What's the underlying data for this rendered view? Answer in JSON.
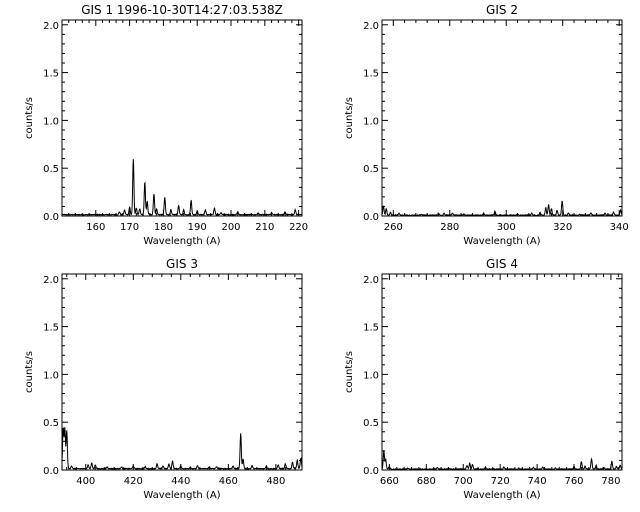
{
  "chart_data": [
    {
      "type": "line",
      "title": "GIS 1 1996-10-30T14:27:03.538Z",
      "xlabel": "Wavelength (A)",
      "ylabel": "counts/s",
      "xlim": [
        150,
        221
      ],
      "ylim": [
        0,
        2.05
      ],
      "x_ticks": [
        160,
        170,
        180,
        190,
        200,
        210,
        220
      ],
      "x_tick_labels": [
        "160",
        "170",
        "180",
        "190",
        "200",
        "210",
        "220"
      ],
      "y_ticks": [
        0,
        0.5,
        1.0,
        1.5,
        2.0
      ],
      "y_tick_labels": [
        "0.0",
        "0.5",
        "1.0",
        "1.5",
        "2.0"
      ],
      "baseline": 0.01,
      "series": [
        {
          "peaks": [
            [
              167.0,
              0.03
            ],
            [
              168.5,
              0.05
            ],
            [
              170.0,
              0.08
            ],
            [
              171.1,
              0.58
            ],
            [
              172.0,
              0.07
            ],
            [
              173.0,
              0.06
            ],
            [
              174.5,
              0.34
            ],
            [
              175.2,
              0.14
            ],
            [
              177.2,
              0.22
            ],
            [
              178.0,
              0.06
            ],
            [
              180.4,
              0.18
            ],
            [
              182.2,
              0.05
            ],
            [
              184.5,
              0.1
            ],
            [
              186.0,
              0.05
            ],
            [
              188.2,
              0.15
            ],
            [
              190.0,
              0.04
            ],
            [
              192.4,
              0.05
            ],
            [
              195.1,
              0.07
            ],
            [
              197.0,
              0.02
            ],
            [
              202.0,
              0.03
            ],
            [
              208.0,
              0.02
            ],
            [
              212.0,
              0.02
            ],
            [
              216.0,
              0.03
            ],
            [
              219.0,
              0.05
            ]
          ]
        }
      ]
    },
    {
      "type": "line",
      "title": "GIS 2",
      "xlabel": "Wavelength (A)",
      "ylabel": "counts/s",
      "xlim": [
        256,
        341
      ],
      "ylim": [
        0,
        2.05
      ],
      "x_ticks": [
        260,
        280,
        300,
        320,
        340
      ],
      "x_tick_labels": [
        "260",
        "280",
        "300",
        "320",
        "340"
      ],
      "y_ticks": [
        0,
        0.5,
        1.0,
        1.5,
        2.0
      ],
      "y_tick_labels": [
        "0.0",
        "0.5",
        "1.0",
        "1.5",
        "2.0"
      ],
      "baseline": 0.005,
      "series": [
        {
          "peaks": [
            [
              256.5,
              0.1
            ],
            [
              257.5,
              0.07
            ],
            [
              259.0,
              0.03
            ],
            [
              262.0,
              0.02
            ],
            [
              270.0,
              0.01
            ],
            [
              276.0,
              0.02
            ],
            [
              278.0,
              0.02
            ],
            [
              281.0,
              0.02
            ],
            [
              285.0,
              0.01
            ],
            [
              292.0,
              0.02
            ],
            [
              296.0,
              0.04
            ],
            [
              304.0,
              0.01
            ],
            [
              309.0,
              0.02
            ],
            [
              312.0,
              0.03
            ],
            [
              314.0,
              0.08
            ],
            [
              315.0,
              0.11
            ],
            [
              316.0,
              0.07
            ],
            [
              318.0,
              0.05
            ],
            [
              319.8,
              0.15
            ],
            [
              322.0,
              0.02
            ],
            [
              326.0,
              0.01
            ],
            [
              330.0,
              0.02
            ],
            [
              335.0,
              0.02
            ],
            [
              338.0,
              0.03
            ],
            [
              340.5,
              0.05
            ]
          ]
        }
      ]
    },
    {
      "type": "line",
      "title": "GIS 3",
      "xlabel": "Wavelength (A)",
      "ylabel": "counts/s",
      "xlim": [
        390,
        491
      ],
      "ylim": [
        0,
        2.05
      ],
      "x_ticks": [
        400,
        420,
        440,
        460,
        480
      ],
      "x_tick_labels": [
        "400",
        "420",
        "440",
        "460",
        "480"
      ],
      "y_ticks": [
        0,
        0.5,
        1.0,
        1.5,
        2.0
      ],
      "y_tick_labels": [
        "0.0",
        "0.5",
        "1.0",
        "1.5",
        "2.0"
      ],
      "baseline": 0.01,
      "series": [
        {
          "peaks": [
            [
              390.5,
              0.43
            ],
            [
              391.2,
              0.42
            ],
            [
              392.0,
              0.4
            ],
            [
              394.0,
              0.03
            ],
            [
              401.0,
              0.04
            ],
            [
              402.5,
              0.06
            ],
            [
              404.0,
              0.04
            ],
            [
              409.0,
              0.02
            ],
            [
              415.0,
              0.02
            ],
            [
              420.0,
              0.03
            ],
            [
              425.0,
              0.02
            ],
            [
              430.0,
              0.05
            ],
            [
              432.5,
              0.03
            ],
            [
              435.0,
              0.05
            ],
            [
              436.5,
              0.08
            ],
            [
              440.0,
              0.03
            ],
            [
              444.0,
              0.02
            ],
            [
              447.0,
              0.03
            ],
            [
              452.0,
              0.02
            ],
            [
              455.0,
              0.02
            ],
            [
              462.0,
              0.03
            ],
            [
              465.2,
              0.37
            ],
            [
              466.2,
              0.1
            ],
            [
              470.0,
              0.03
            ],
            [
              476.0,
              0.03
            ],
            [
              481.0,
              0.04
            ],
            [
              484.0,
              0.05
            ],
            [
              487.0,
              0.07
            ],
            [
              489.0,
              0.09
            ],
            [
              490.5,
              0.11
            ]
          ]
        }
      ]
    },
    {
      "type": "line",
      "title": "GIS 4",
      "xlabel": "Wavelength (A)",
      "ylabel": "counts/s",
      "xlim": [
        656,
        786
      ],
      "ylim": [
        0,
        2.05
      ],
      "x_ticks": [
        660,
        680,
        700,
        720,
        740,
        760,
        780
      ],
      "x_tick_labels": [
        "660",
        "680",
        "700",
        "720",
        "740",
        "760",
        "780"
      ],
      "y_ticks": [
        0,
        0.5,
        1.0,
        1.5,
        2.0
      ],
      "y_tick_labels": [
        "0.0",
        "0.5",
        "1.0",
        "1.5",
        "2.0"
      ],
      "baseline": 0.005,
      "series": [
        {
          "peaks": [
            [
              657.0,
              0.19
            ],
            [
              658.0,
              0.1
            ],
            [
              660.0,
              0.03
            ],
            [
              670.0,
              0.01
            ],
            [
              686.0,
              0.02
            ],
            [
              692.0,
              0.01
            ],
            [
              702.0,
              0.04
            ],
            [
              703.5,
              0.06
            ],
            [
              705.0,
              0.05
            ],
            [
              712.0,
              0.02
            ],
            [
              722.0,
              0.02
            ],
            [
              730.0,
              0.01
            ],
            [
              738.0,
              0.02
            ],
            [
              743.0,
              0.02
            ],
            [
              750.0,
              0.01
            ],
            [
              760.0,
              0.03
            ],
            [
              764.0,
              0.08
            ],
            [
              766.0,
              0.03
            ],
            [
              769.5,
              0.11
            ],
            [
              772.0,
              0.04
            ],
            [
              776.0,
              0.02
            ],
            [
              780.5,
              0.08
            ],
            [
              783.0,
              0.03
            ],
            [
              785.0,
              0.04
            ]
          ]
        }
      ]
    }
  ]
}
